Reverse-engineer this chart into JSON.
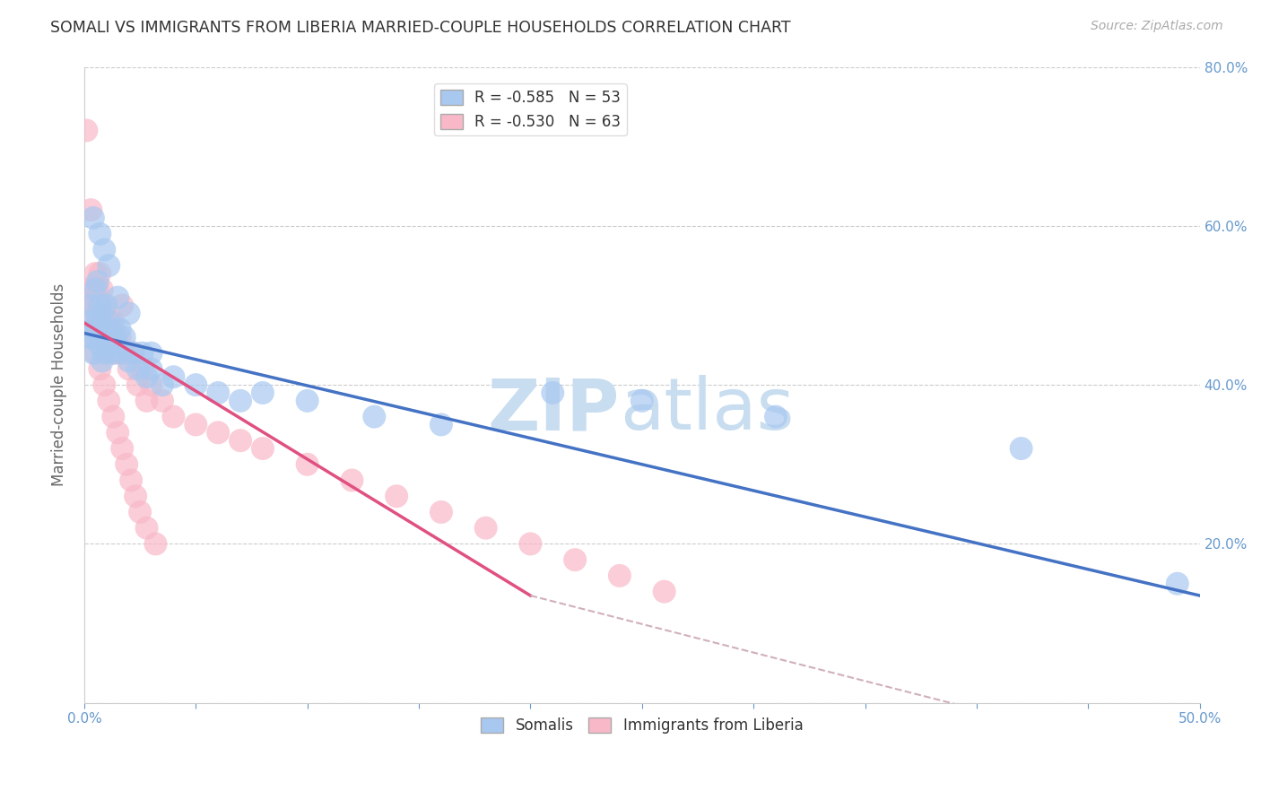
{
  "title": "SOMALI VS IMMIGRANTS FROM LIBERIA MARRIED-COUPLE HOUSEHOLDS CORRELATION CHART",
  "source": "Source: ZipAtlas.com",
  "ylabel": "Married-couple Households",
  "xlim": [
    0.0,
    0.5
  ],
  "ylim": [
    0.0,
    0.8
  ],
  "xticks": [
    0.0,
    0.05,
    0.1,
    0.15,
    0.2,
    0.25,
    0.3,
    0.35,
    0.4,
    0.45,
    0.5
  ],
  "xtick_show_labels": [
    0,
    10
  ],
  "xtick_label_0": "0.0%",
  "xtick_label_last": "50.0%",
  "yticks": [
    0.0,
    0.2,
    0.4,
    0.6,
    0.8
  ],
  "ytick_labels_right": [
    "",
    "20.0%",
    "40.0%",
    "60.0%",
    "80.0%"
  ],
  "legend1_label": "R = -0.585   N = 53",
  "legend2_label": "R = -0.530   N = 63",
  "legend1_color": "#a8c8f0",
  "legend2_color": "#f8b8c8",
  "trendline1_color": "#4472c4",
  "trendline2_color": "#e05080",
  "trendline2_dashed_color": "#d0b0b8",
  "watermark_zip": "ZIP",
  "watermark_atlas": "atlas",
  "watermark_color": "#c8ddf0",
  "scatter1_color": "#a8c8f0",
  "scatter2_color": "#f8b8c8",
  "somali_x": [
    0.002,
    0.003,
    0.003,
    0.004,
    0.004,
    0.005,
    0.005,
    0.006,
    0.006,
    0.007,
    0.007,
    0.008,
    0.008,
    0.009,
    0.009,
    0.01,
    0.01,
    0.011,
    0.012,
    0.013,
    0.013,
    0.014,
    0.015,
    0.016,
    0.017,
    0.018,
    0.02,
    0.022,
    0.024,
    0.026,
    0.028,
    0.03,
    0.035,
    0.04,
    0.05,
    0.06,
    0.07,
    0.08,
    0.1,
    0.13,
    0.16,
    0.21,
    0.25,
    0.31,
    0.42,
    0.49,
    0.004,
    0.007,
    0.009,
    0.011,
    0.015,
    0.02,
    0.03
  ],
  "somali_y": [
    0.46,
    0.5,
    0.48,
    0.44,
    0.47,
    0.52,
    0.46,
    0.48,
    0.53,
    0.5,
    0.45,
    0.49,
    0.43,
    0.47,
    0.44,
    0.5,
    0.46,
    0.48,
    0.45,
    0.47,
    0.44,
    0.46,
    0.45,
    0.47,
    0.44,
    0.46,
    0.43,
    0.44,
    0.42,
    0.44,
    0.41,
    0.42,
    0.4,
    0.41,
    0.4,
    0.39,
    0.38,
    0.39,
    0.38,
    0.36,
    0.35,
    0.39,
    0.38,
    0.36,
    0.32,
    0.15,
    0.61,
    0.59,
    0.57,
    0.55,
    0.51,
    0.49,
    0.44
  ],
  "liberia_x": [
    0.001,
    0.002,
    0.003,
    0.003,
    0.004,
    0.004,
    0.005,
    0.005,
    0.006,
    0.006,
    0.007,
    0.007,
    0.008,
    0.008,
    0.009,
    0.009,
    0.01,
    0.01,
    0.011,
    0.012,
    0.013,
    0.013,
    0.014,
    0.015,
    0.016,
    0.017,
    0.018,
    0.02,
    0.022,
    0.024,
    0.026,
    0.028,
    0.03,
    0.035,
    0.04,
    0.05,
    0.06,
    0.07,
    0.08,
    0.1,
    0.12,
    0.14,
    0.16,
    0.18,
    0.2,
    0.22,
    0.24,
    0.26,
    0.001,
    0.003,
    0.005,
    0.007,
    0.009,
    0.011,
    0.013,
    0.015,
    0.017,
    0.019,
    0.021,
    0.023,
    0.025,
    0.028,
    0.032
  ],
  "liberia_y": [
    0.72,
    0.52,
    0.62,
    0.5,
    0.52,
    0.48,
    0.54,
    0.5,
    0.52,
    0.48,
    0.54,
    0.5,
    0.52,
    0.46,
    0.5,
    0.46,
    0.48,
    0.44,
    0.48,
    0.46,
    0.44,
    0.48,
    0.46,
    0.44,
    0.46,
    0.5,
    0.44,
    0.42,
    0.44,
    0.4,
    0.42,
    0.38,
    0.4,
    0.38,
    0.36,
    0.35,
    0.34,
    0.33,
    0.32,
    0.3,
    0.28,
    0.26,
    0.24,
    0.22,
    0.2,
    0.18,
    0.16,
    0.14,
    0.5,
    0.46,
    0.44,
    0.42,
    0.4,
    0.38,
    0.36,
    0.34,
    0.32,
    0.3,
    0.28,
    0.26,
    0.24,
    0.22,
    0.2
  ],
  "trendline1_x_start": 0.0,
  "trendline1_x_end": 0.5,
  "trendline1_y_start": 0.465,
  "trendline1_y_end": 0.135,
  "trendline2_x_start": 0.0,
  "trendline2_x_end": 0.2,
  "trendline2_y_start": 0.478,
  "trendline2_y_end": 0.135,
  "trendline2d_x_start": 0.2,
  "trendline2d_x_end": 0.5,
  "trendline2d_y_start": 0.135,
  "trendline2d_y_end": -0.08,
  "background_color": "#ffffff",
  "grid_color": "#cccccc",
  "title_color": "#333333",
  "tick_color": "#6699cc",
  "legend_label_somali": "Somalis",
  "legend_label_liberia": "Immigrants from Liberia"
}
